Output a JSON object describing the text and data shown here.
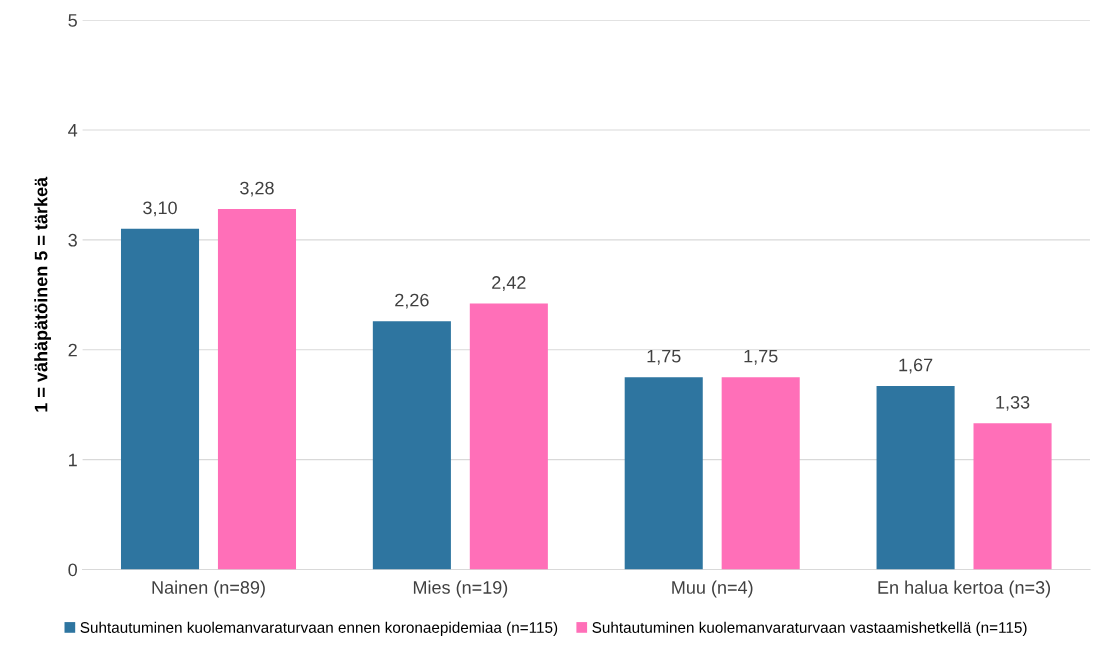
{
  "chart_data": {
    "type": "bar",
    "ylabel": "1 = vähäpätöinen 5 = tärkeä",
    "categories": [
      "Nainen (n=89)",
      "Mies (n=19)",
      "Muu (n=4)",
      "En halua kertoa (n=3)"
    ],
    "series": [
      {
        "name": "Suhtautuminen kuolemanvaraturvaan ennen koronaepidemiaa (n=115)",
        "color": "#2e75a0",
        "values": [
          3.1,
          2.26,
          1.75,
          1.67
        ],
        "value_labels": [
          "3,10",
          "2,26",
          "1,75",
          "1,67"
        ]
      },
      {
        "name": "Suhtautuminen kuolemanvaraturvaan vastaamishetkellä (n=115)",
        "color": "#ff6fb8",
        "values": [
          3.28,
          2.42,
          1.75,
          1.33
        ],
        "value_labels": [
          "3,28",
          "2,42",
          "1,75",
          "1,33"
        ]
      }
    ],
    "ylim": [
      0,
      5
    ],
    "yticks": [
      0,
      1,
      2,
      3,
      4,
      5
    ],
    "grid": "y",
    "legend": "bottom"
  }
}
